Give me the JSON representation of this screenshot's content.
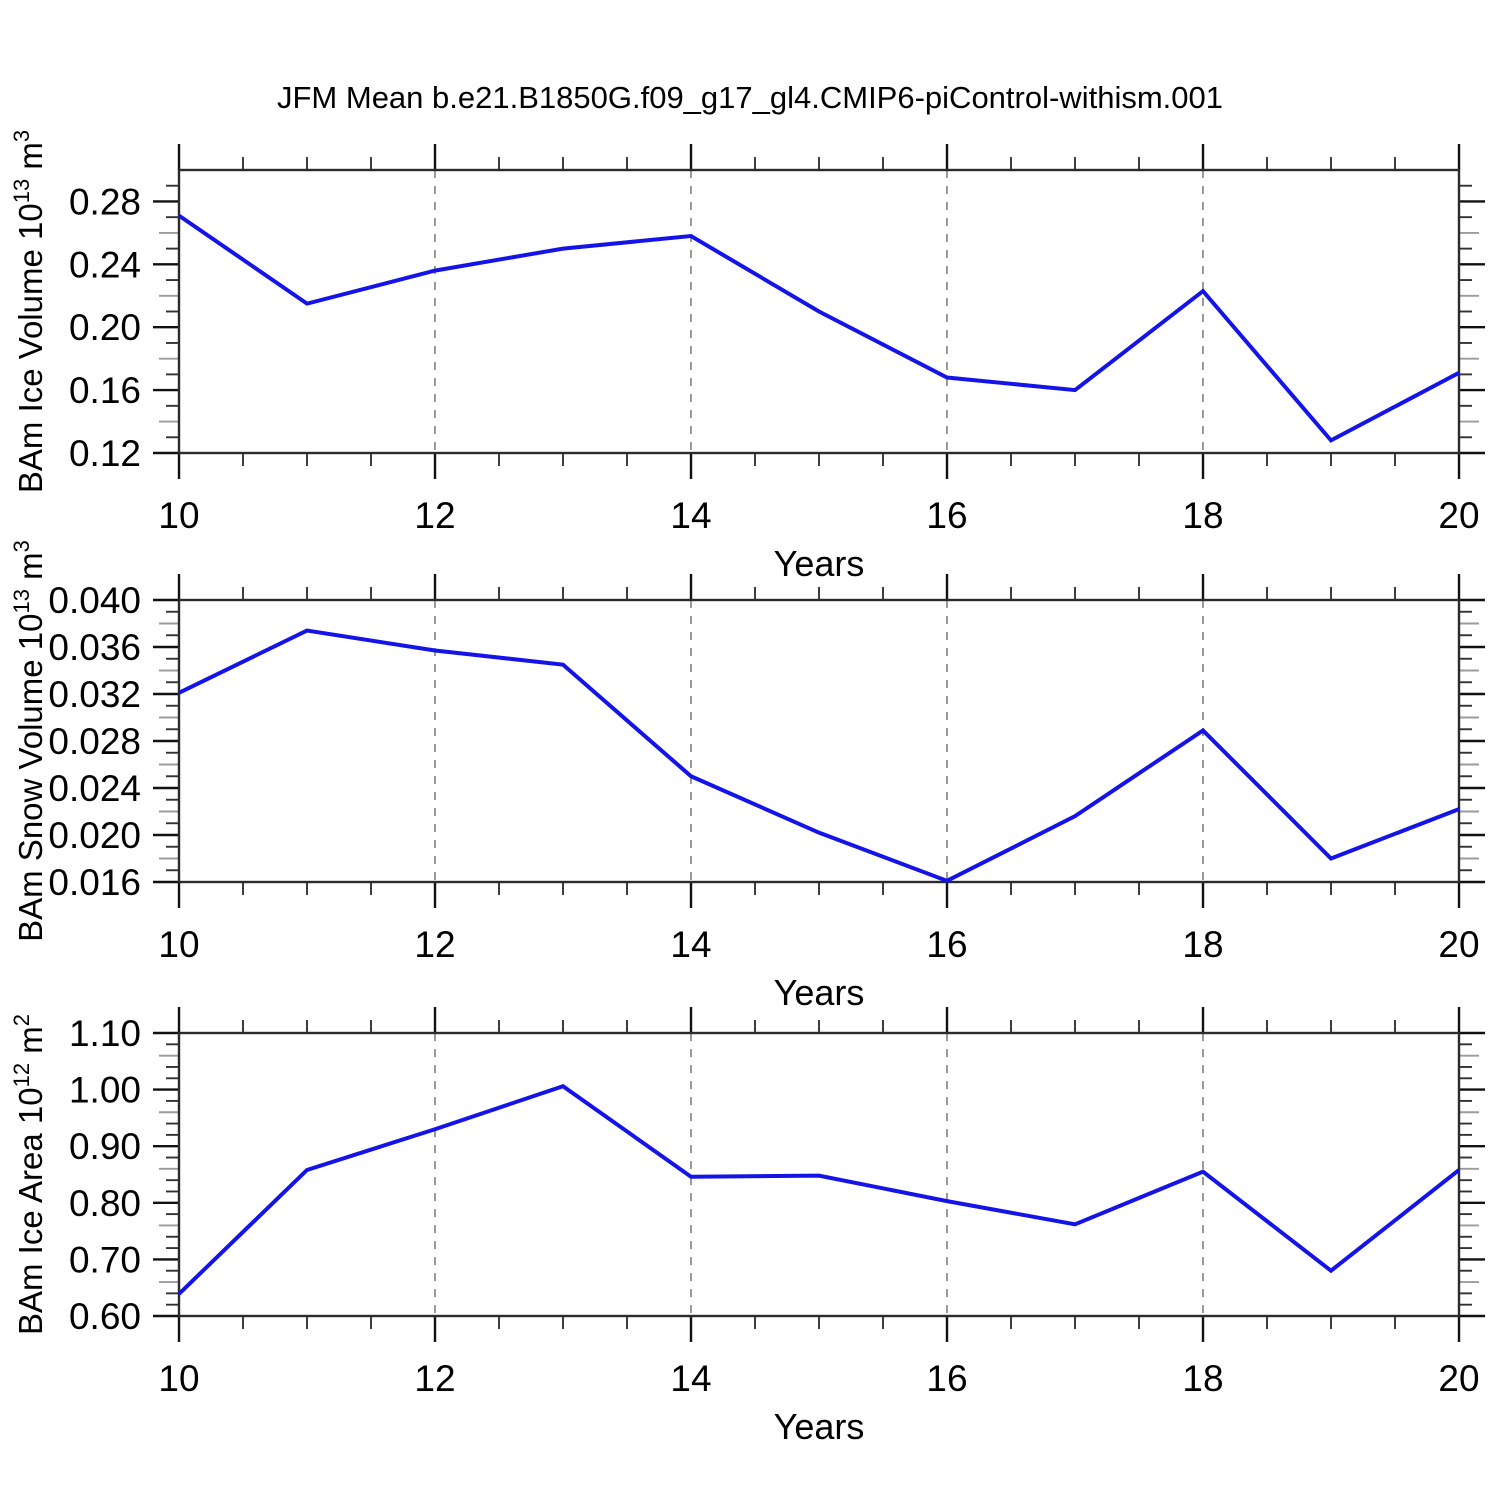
{
  "title": "JFM Mean b.e21.B1850G.f09_g17_gl4.CMIP6-piControl-withism.001",
  "xlabel": "Years",
  "x_tick_labels": [
    "10",
    "12",
    "14",
    "16",
    "18",
    "20"
  ],
  "colors": {
    "line": "#1414e8",
    "frame": "#2b2b2b",
    "major_tick": "#111111",
    "minor_tick": "#333333",
    "emph_tick": "#9b9b9b",
    "grid": "#808080",
    "text": "#000000"
  },
  "chart_data": [
    {
      "type": "line",
      "id": "ice-volume",
      "title": "JFM Mean b.e21.B1850G.f09_g17_gl4.CMIP6-piControl-withism.001",
      "xlabel": "Years",
      "ylabel": "BAm Ice Volume 10^13 m^3",
      "ylabel_parts": {
        "base": "BAm Ice Volume 10",
        "exp": "13",
        "unit": " m",
        "unit_exp": "3"
      },
      "x": [
        10,
        11,
        12,
        13,
        14,
        15,
        16,
        17,
        18,
        19,
        20
      ],
      "values": [
        0.271,
        0.215,
        0.236,
        0.25,
        0.258,
        0.21,
        0.168,
        0.16,
        0.223,
        0.128,
        0.171
      ],
      "ylim": [
        0.12,
        0.3
      ],
      "yticks": [
        0.12,
        0.16,
        0.2,
        0.24,
        0.28
      ],
      "ytick_labels": [
        "0.12",
        "0.16",
        "0.20",
        "0.24",
        "0.28"
      ],
      "y_minor_step": 0.01,
      "emph_mod": 4,
      "emph_rem": 2,
      "xlim": [
        10,
        20
      ],
      "xticks": [
        10,
        12,
        14,
        16,
        18,
        20
      ],
      "x_minor_step": 0.5,
      "gridline_x": [
        12,
        14,
        16,
        18
      ],
      "grid": "vertical-dashed",
      "legend": "none"
    },
    {
      "type": "line",
      "id": "snow-volume",
      "title": "",
      "xlabel": "Years",
      "ylabel": "BAm Snow Volume 10^13 m^3",
      "ylabel_parts": {
        "base": "BAm Snow Volume 10",
        "exp": "13",
        "unit": " m",
        "unit_exp": "3"
      },
      "x": [
        10,
        11,
        12,
        13,
        14,
        15,
        16,
        17,
        18,
        19,
        20
      ],
      "values": [
        0.0321,
        0.0374,
        0.0357,
        0.0345,
        0.025,
        0.0202,
        0.0161,
        0.0216,
        0.0289,
        0.018,
        0.0222
      ],
      "ylim": [
        0.016,
        0.04
      ],
      "yticks": [
        0.016,
        0.02,
        0.024,
        0.028,
        0.032,
        0.036,
        0.04
      ],
      "ytick_labels": [
        "0.016",
        "0.020",
        "0.024",
        "0.028",
        "0.032",
        "0.036",
        "0.040"
      ],
      "y_minor_step": 0.001,
      "emph_mod": 4,
      "emph_rem": 2,
      "xlim": [
        10,
        20
      ],
      "xticks": [
        10,
        12,
        14,
        16,
        18,
        20
      ],
      "x_minor_step": 0.5,
      "gridline_x": [
        12,
        14,
        16,
        18
      ],
      "grid": "vertical-dashed",
      "legend": "none"
    },
    {
      "type": "line",
      "id": "ice-area",
      "title": "",
      "xlabel": "Years",
      "ylabel": "BAm Ice Area 10^12 m^2",
      "ylabel_parts": {
        "base": "BAm Ice Area 10",
        "exp": "12",
        "unit": " m",
        "unit_exp": "2"
      },
      "x": [
        10,
        11,
        12,
        13,
        14,
        15,
        16,
        17,
        18,
        19,
        20
      ],
      "values": [
        0.639,
        0.858,
        0.93,
        1.006,
        0.846,
        0.848,
        0.803,
        0.762,
        0.855,
        0.68,
        0.858
      ],
      "ylim": [
        0.6,
        1.1
      ],
      "yticks": [
        0.6,
        0.7,
        0.8,
        0.9,
        1.0,
        1.1
      ],
      "ytick_labels": [
        "0.60",
        "0.70",
        "0.80",
        "0.90",
        "1.00",
        "1.10"
      ],
      "y_minor_step": 0.02,
      "emph_mod": 5,
      "emph_rem": 3,
      "xlim": [
        10,
        20
      ],
      "xticks": [
        10,
        12,
        14,
        16,
        18,
        20
      ],
      "x_minor_step": 0.5,
      "gridline_x": [
        12,
        14,
        16,
        18
      ],
      "grid": "vertical-dashed",
      "legend": "none"
    }
  ]
}
